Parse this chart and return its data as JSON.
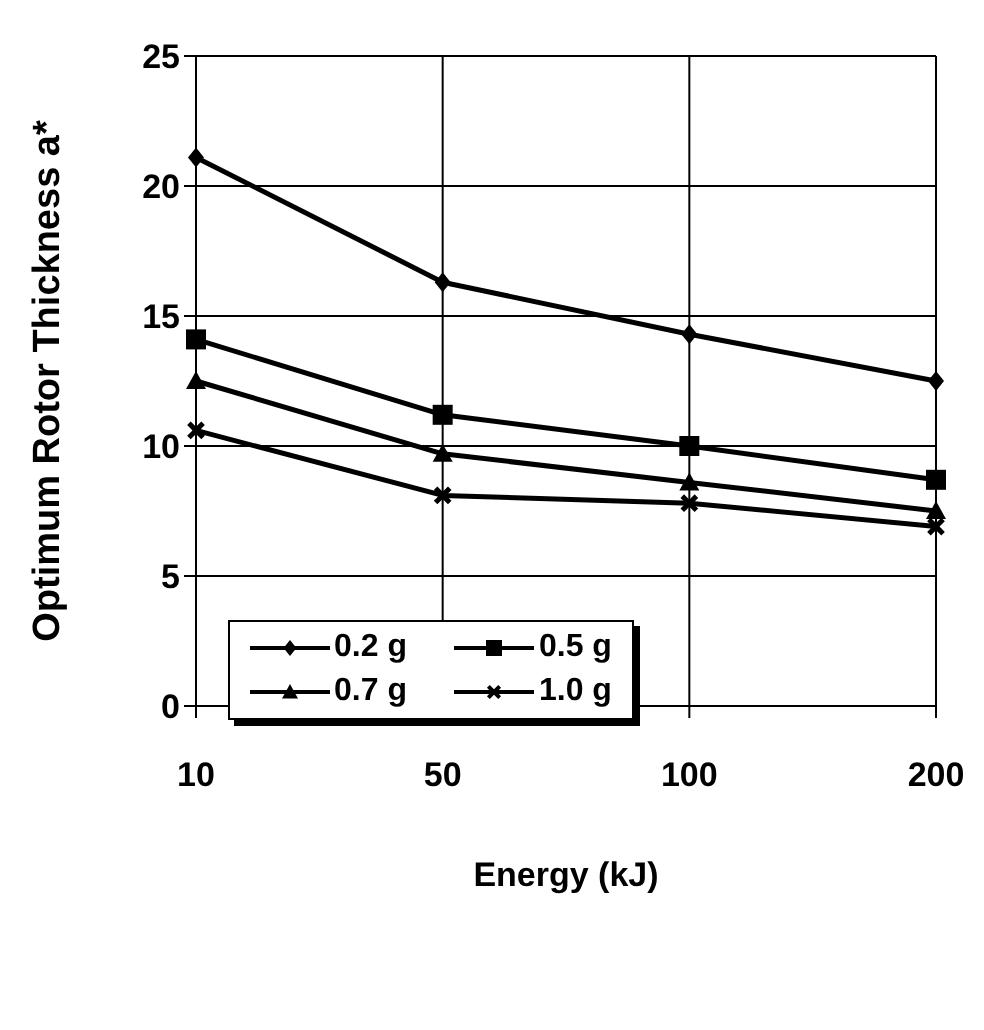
{
  "chart_data": {
    "type": "line",
    "xlabel": "Energy (kJ)",
    "ylabel": "Optimum Rotor Thickness a*",
    "categories": [
      "10",
      "50",
      "100",
      "200"
    ],
    "series": [
      {
        "name": "0.2 g",
        "color": "#000000",
        "marker": "diamond",
        "values": [
          21.1,
          16.3,
          14.3,
          12.5
        ]
      },
      {
        "name": "0.5 g",
        "color": "#000000",
        "marker": "square",
        "values": [
          14.1,
          11.2,
          10.0,
          8.7
        ]
      },
      {
        "name": "0.7 g",
        "color": "#000000",
        "marker": "triangle",
        "values": [
          12.5,
          9.7,
          8.6,
          7.5
        ]
      },
      {
        "name": "1.0 g",
        "color": "#000000",
        "marker": "cross",
        "values": [
          10.6,
          8.1,
          7.8,
          6.9
        ]
      }
    ],
    "ylim": [
      0,
      25
    ],
    "yticks": [
      0,
      5,
      10,
      15,
      20,
      25
    ],
    "grid": true,
    "legend": "bottom left",
    "line_style": "solid"
  }
}
